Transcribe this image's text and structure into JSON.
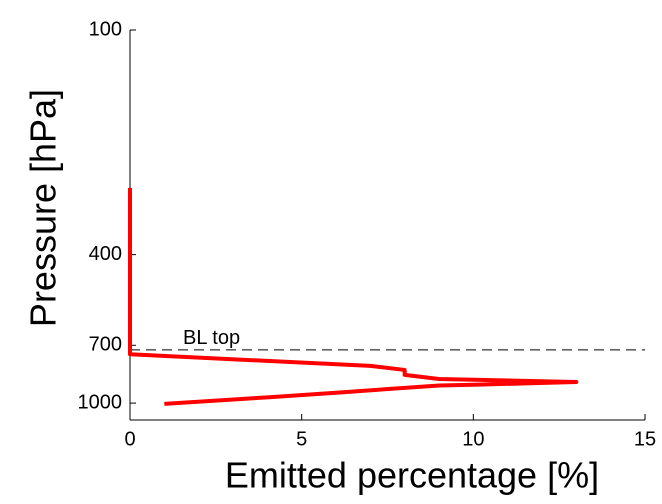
{
  "chart_data": {
    "type": "line",
    "x_label": "Emitted percentage [%]",
    "y_label": "Pressure [hPa]",
    "xlim": [
      0,
      15
    ],
    "xticks": [
      0,
      5,
      10,
      15
    ],
    "ylim": [
      100,
      1110
    ],
    "yticks": [
      100,
      400,
      700,
      1000
    ],
    "y_scale": "log",
    "y_reversed": true,
    "series": [
      {
        "color": "#ff0000",
        "x": [
          0,
          0,
          7,
          8,
          8,
          9,
          13,
          10,
          9,
          6,
          4,
          1
        ],
        "values": [
          265,
          740,
          795,
          815,
          840,
          862,
          878,
          893,
          897,
          938,
          965,
          1005
        ]
      }
    ],
    "annotation": {
      "text": "BL top",
      "value": 720
    }
  }
}
